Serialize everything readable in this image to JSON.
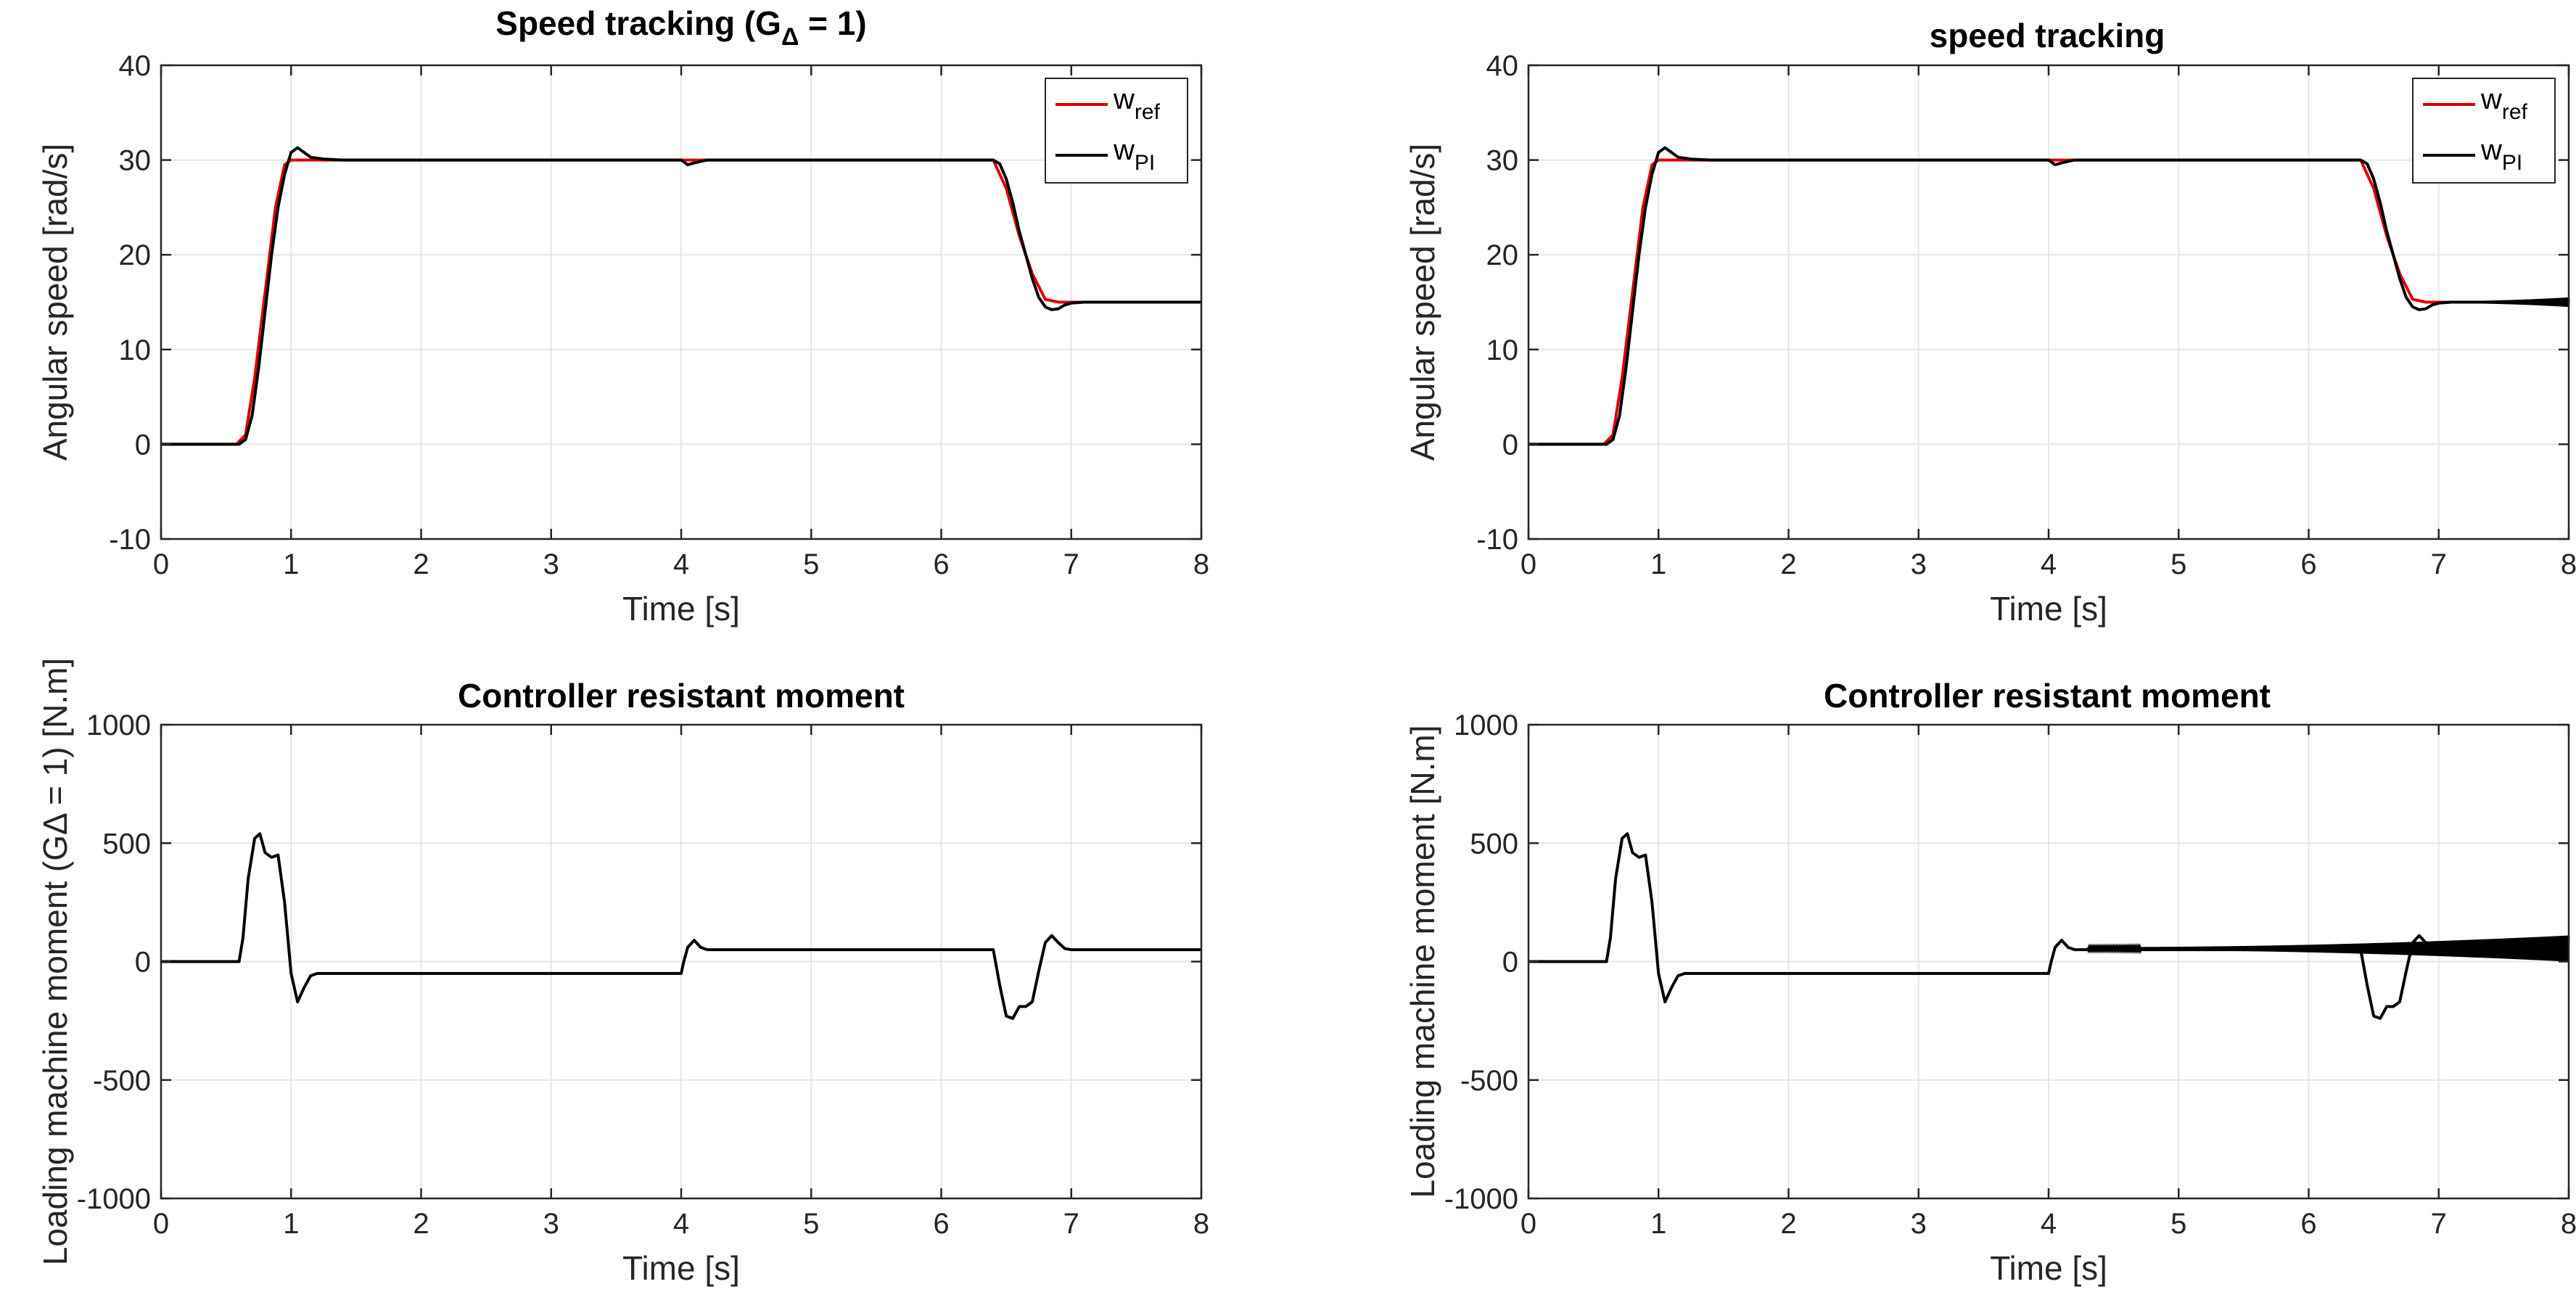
{
  "colors": {
    "ref": "#e00000",
    "pi": "#000000",
    "grid": "#e6e6e6",
    "axis": "#262626"
  },
  "chart_data": [
    {
      "id": "tl",
      "type": "line",
      "title": "Speed tracking (G",
      "title_sub": "Δ",
      "title_tail": " = 1)",
      "xlabel": "Time [s]",
      "ylabel": "Angular speed [rad/s]",
      "xlim": [
        0,
        8
      ],
      "ylim": [
        -10,
        40
      ],
      "xticks": [
        "0",
        "1",
        "2",
        "3",
        "4",
        "5",
        "6",
        "7",
        "8"
      ],
      "yticks": [
        "-10",
        "0",
        "10",
        "20",
        "30",
        "40"
      ],
      "legend": [
        {
          "base": "w",
          "sub": "ref",
          "color": "#e00000"
        },
        {
          "base": "w",
          "sub": "PI",
          "color": "#000000"
        }
      ],
      "series": [
        {
          "name": "w_ref",
          "color": "#e00000",
          "x": [
            0,
            0.58,
            0.65,
            0.72,
            0.8,
            0.88,
            0.95,
            1.0,
            1.3,
            4.0,
            4.08,
            4.2,
            6.4,
            6.5,
            6.6,
            6.7,
            6.8,
            6.9,
            8
          ],
          "y": [
            0,
            0,
            1,
            7,
            16,
            25,
            29.5,
            30,
            30,
            30,
            30,
            30,
            30,
            27,
            22,
            18,
            15.3,
            15,
            15
          ]
        },
        {
          "name": "w_PI",
          "color": "#000000",
          "x": [
            0,
            0.6,
            0.65,
            0.7,
            0.75,
            0.8,
            0.85,
            0.9,
            0.95,
            1.0,
            1.05,
            1.1,
            1.15,
            1.25,
            1.4,
            1.6,
            4.0,
            4.05,
            4.1,
            4.2,
            4.3,
            6.4,
            6.45,
            6.5,
            6.55,
            6.6,
            6.65,
            6.7,
            6.75,
            6.8,
            6.85,
            6.9,
            6.95,
            7.0,
            7.1,
            7.3,
            8
          ],
          "y": [
            0,
            0,
            0.5,
            3,
            8,
            14,
            20,
            25,
            28.5,
            30.8,
            31.3,
            30.8,
            30.3,
            30.1,
            30,
            30,
            30,
            29.5,
            29.7,
            30,
            30,
            30,
            29.6,
            28,
            25.5,
            22.5,
            20,
            17.5,
            15.5,
            14.5,
            14.2,
            14.3,
            14.7,
            14.9,
            15,
            15,
            15
          ]
        }
      ]
    },
    {
      "id": "tr",
      "type": "line",
      "title": "speed tracking",
      "title_sub": "",
      "title_tail": "",
      "xlabel": "Time [s]",
      "ylabel": "Angular speed [rad/s]",
      "xlim": [
        0,
        8
      ],
      "ylim": [
        -10,
        40
      ],
      "xticks": [
        "0",
        "1",
        "2",
        "3",
        "4",
        "5",
        "6",
        "7",
        "8"
      ],
      "yticks": [
        "-10",
        "0",
        "10",
        "20",
        "30",
        "40"
      ],
      "legend": [
        {
          "base": "w",
          "sub": "ref",
          "color": "#e00000"
        },
        {
          "base": "w",
          "sub": "PI",
          "color": "#000000"
        }
      ],
      "series": [
        {
          "name": "w_ref",
          "color": "#e00000",
          "x": [
            0,
            0.58,
            0.65,
            0.72,
            0.8,
            0.88,
            0.95,
            1.0,
            1.3,
            4.0,
            4.08,
            4.2,
            6.4,
            6.5,
            6.6,
            6.7,
            6.8,
            6.9,
            8
          ],
          "y": [
            0,
            0,
            1,
            7,
            16,
            25,
            29.5,
            30,
            30,
            30,
            30,
            30,
            30,
            27,
            22,
            18,
            15.3,
            15,
            15
          ]
        },
        {
          "name": "w_PI",
          "color": "#000000",
          "x": [
            0,
            0.6,
            0.65,
            0.7,
            0.75,
            0.8,
            0.85,
            0.9,
            0.95,
            1.0,
            1.05,
            1.1,
            1.15,
            1.25,
            1.4,
            1.6,
            4.0,
            4.05,
            4.1,
            4.2,
            4.3,
            6.4,
            6.45,
            6.5,
            6.55,
            6.6,
            6.65,
            6.7,
            6.75,
            6.8,
            6.85,
            6.9,
            6.95,
            7.0,
            7.1,
            7.3,
            8
          ],
          "y": [
            0,
            0,
            0.5,
            3,
            8,
            14,
            20,
            25,
            28.5,
            30.8,
            31.3,
            30.8,
            30.3,
            30.1,
            30,
            30,
            30,
            29.5,
            29.7,
            30,
            30,
            30,
            29.6,
            28,
            25.5,
            22.5,
            20,
            17.5,
            15.5,
            14.5,
            14.2,
            14.3,
            14.7,
            14.9,
            15,
            15,
            15
          ]
        }
      ],
      "oscillation": {
        "series": "w_PI",
        "from": 7.0,
        "to": 8.0,
        "base": 15,
        "amp_start": 0.1,
        "amp_end": 0.5
      }
    },
    {
      "id": "bl",
      "type": "line",
      "title": "Controller resistant moment",
      "title_sub": "",
      "title_tail": "",
      "xlabel": "Time [s]",
      "ylabel": "Loading machine moment  (GΔ = 1) [N.m]",
      "xlim": [
        0,
        8
      ],
      "ylim": [
        -1000,
        1000
      ],
      "xticks": [
        "0",
        "1",
        "2",
        "3",
        "4",
        "5",
        "6",
        "7",
        "8"
      ],
      "yticks": [
        "-1000",
        "-500",
        "0",
        "500",
        "1000"
      ],
      "legend": [],
      "series": [
        {
          "name": "moment",
          "color": "#000000",
          "x": [
            0,
            0.6,
            0.63,
            0.67,
            0.72,
            0.76,
            0.8,
            0.85,
            0.9,
            0.95,
            1.0,
            1.05,
            1.1,
            1.15,
            1.2,
            1.3,
            1.4,
            4.0,
            4.02,
            4.05,
            4.1,
            4.15,
            4.2,
            4.3,
            6.4,
            6.45,
            6.5,
            6.55,
            6.6,
            6.65,
            6.7,
            6.75,
            6.8,
            6.85,
            6.9,
            6.95,
            7.0,
            7.1,
            8
          ],
          "y": [
            0,
            0,
            100,
            350,
            520,
            540,
            460,
            440,
            450,
            250,
            -50,
            -170,
            -110,
            -60,
            -50,
            -50,
            -50,
            -50,
            0,
            60,
            90,
            60,
            50,
            50,
            50,
            -100,
            -230,
            -240,
            -190,
            -190,
            -170,
            -40,
            80,
            110,
            80,
            55,
            50,
            50,
            50
          ]
        }
      ]
    },
    {
      "id": "br",
      "type": "line",
      "title": "Controller resistant moment",
      "title_sub": "",
      "title_tail": "",
      "xlabel": "Time [s]",
      "ylabel": "Loading machine moment [N.m]",
      "xlim": [
        0,
        8
      ],
      "ylim": [
        -1000,
        1000
      ],
      "xticks": [
        "0",
        "1",
        "2",
        "3",
        "4",
        "5",
        "6",
        "7",
        "8"
      ],
      "yticks": [
        "-1000",
        "-500",
        "0",
        "500",
        "1000"
      ],
      "legend": [],
      "series": [
        {
          "name": "moment",
          "color": "#000000",
          "x": [
            0,
            0.6,
            0.63,
            0.67,
            0.72,
            0.76,
            0.8,
            0.85,
            0.9,
            0.95,
            1.0,
            1.05,
            1.1,
            1.15,
            1.2,
            1.3,
            1.4,
            4.0,
            4.02,
            4.05,
            4.1,
            4.15,
            4.2,
            4.3,
            6.4,
            6.45,
            6.5,
            6.55,
            6.6,
            6.65,
            6.7,
            6.75,
            6.8,
            6.85,
            6.9,
            6.95,
            7.0,
            7.1,
            7.2
          ],
          "y": [
            0,
            0,
            100,
            350,
            520,
            540,
            460,
            440,
            450,
            250,
            -50,
            -170,
            -110,
            -60,
            -50,
            -50,
            -50,
            -50,
            0,
            60,
            90,
            60,
            50,
            50,
            50,
            -100,
            -230,
            -240,
            -190,
            -190,
            -170,
            -40,
            80,
            110,
            80,
            55,
            50,
            50,
            50
          ]
        }
      ],
      "oscillation": {
        "series": "moment",
        "from": 4.3,
        "to": 8.0,
        "base": 55,
        "amp_start": 5,
        "amp_end": 55
      }
    }
  ]
}
